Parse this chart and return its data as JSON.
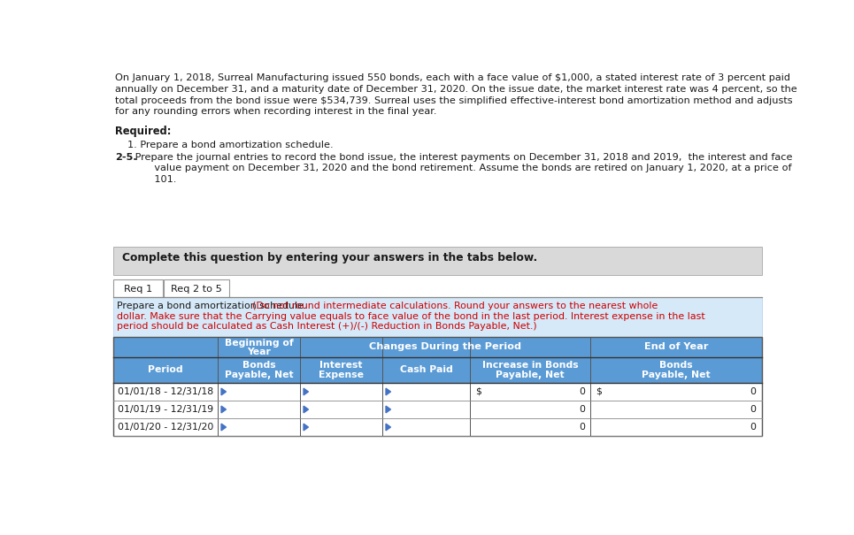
{
  "paragraph_text": "On January 1, 2018, Surreal Manufacturing issued 550 bonds, each with a face value of $1,000, a stated interest rate of 3 percent paid\nannually on December 31, and a maturity date of December 31, 2020. On the issue date, the market interest rate was 4 percent, so the\ntotal proceeds from the bond issue were $534,739. Surreal uses the simplified effective-interest bond amortization method and adjusts\nfor any rounding errors when recording interest in the final year.",
  "required_label": "Required:",
  "req1_text": "1. Prepare a bond amortization schedule.",
  "req25_bold": "2-5.",
  "req25_line1": " Prepare the journal entries to record the bond issue, the interest payments on December 31, 2018 and 2019,  the interest and face",
  "req25_line2": "       value payment on December 31, 2020 and the bond retirement. Assume the bonds are retired on January 1, 2020, at a price of",
  "req25_line3": "       101.",
  "complete_text": "Complete this question by entering your answers in the tabs below.",
  "tab1": "Req 1",
  "tab2": "Req 2 to 5",
  "instruction_black": "Prepare a bond amortization schedule. ",
  "instruction_red_line1": "(Do not round intermediate calculations. Round your answers to the nearest whole",
  "instruction_red_line2": "dollar. Make sure that the Carrying value equals to face value of the bond in the last period. Interest expense in the last",
  "instruction_red_line3": "period should be calculated as Cash Interest (+)/(-) Reduction in Bonds Payable, Net.)",
  "header1_line1": "Beginning of",
  "header1_line2": "Year",
  "header2": "Changes During the Period",
  "header3": "End of Year",
  "rows": [
    {
      "period": "01/01/18 - 12/31/18",
      "increase_prefix": "$",
      "increase_val": "0",
      "end_prefix": "$",
      "end_val": "0"
    },
    {
      "period": "01/01/19 - 12/31/19",
      "increase_prefix": "",
      "increase_val": "0",
      "end_prefix": "",
      "end_val": "0"
    },
    {
      "period": "01/01/20 - 12/31/20",
      "increase_prefix": "",
      "increase_val": "0",
      "end_prefix": "",
      "end_val": "0"
    }
  ],
  "bg_color": "#ffffff",
  "table_header_bg": "#5b9bd5",
  "instruction_bg": "#d6e9f8",
  "complete_bg": "#d9d9d9",
  "input_marker_color": "#4472c4"
}
